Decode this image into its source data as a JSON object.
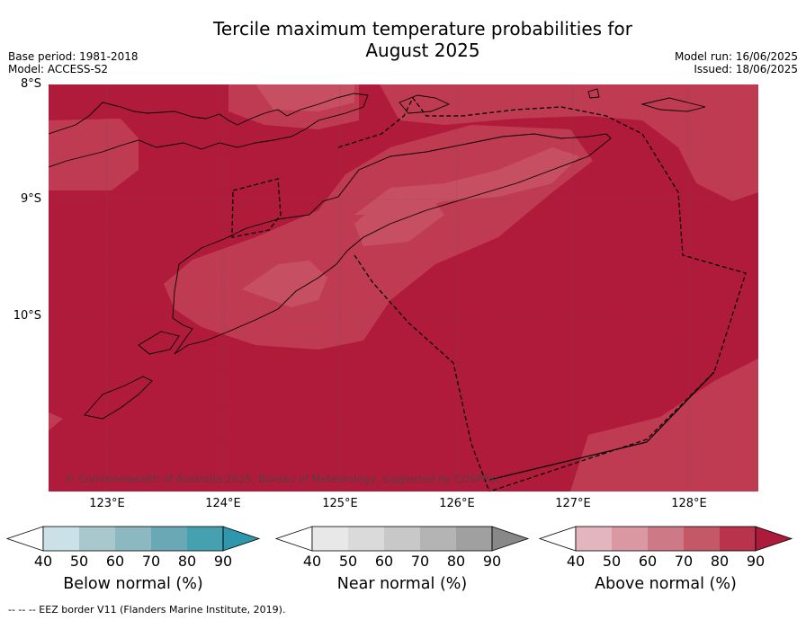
{
  "title_line1": "Tercile maximum temperature probabilities for",
  "title_line2": "August 2025",
  "base_period": "Base period: 1981-2018",
  "model": "Model: ACCESS-S2",
  "model_run": "Model run: 16/06/2025",
  "issued": "Issued: 18/06/2025",
  "lat_labels": [
    "8°S",
    "9°S",
    "10°S"
  ],
  "lon_labels": [
    "123°E",
    "124°E",
    "125°E",
    "126°E",
    "127°E",
    "128°E"
  ],
  "copyright": "© Commonwealth of Australia 2025, Bureau of Meteorology, supported by COSPPac",
  "colorbars": [
    {
      "title": "Below normal (%)",
      "ticks": [
        "40",
        "50",
        "60",
        "70",
        "80",
        "90"
      ],
      "colors": [
        "#ffffff",
        "#c9e1e7",
        "#a9c8cd",
        "#8cb8c2",
        "#6aa8b6",
        "#45a0b0",
        "#2f97ad"
      ]
    },
    {
      "title": "Near normal (%)",
      "ticks": [
        "40",
        "50",
        "60",
        "70",
        "80",
        "90"
      ],
      "colors": [
        "#ffffff",
        "#e8e8e8",
        "#dadada",
        "#c8c8c8",
        "#b4b4b4",
        "#a0a0a0",
        "#888888"
      ]
    },
    {
      "title": "Above normal (%)",
      "ticks": [
        "40",
        "50",
        "60",
        "70",
        "80",
        "90"
      ],
      "colors": [
        "#ffffff",
        "#e3b5bf",
        "#da98a3",
        "#ce7a86",
        "#c45866",
        "#b8334b",
        "#ad1a3a"
      ]
    }
  ],
  "footer": "--  --  -- EEZ border V11 (Flanders Marine Institute, 2019).",
  "map_colors": {
    "c80_90": "#b11b3b",
    "c70_80": "#bf3b52",
    "c60_70": "#c64f61"
  }
}
